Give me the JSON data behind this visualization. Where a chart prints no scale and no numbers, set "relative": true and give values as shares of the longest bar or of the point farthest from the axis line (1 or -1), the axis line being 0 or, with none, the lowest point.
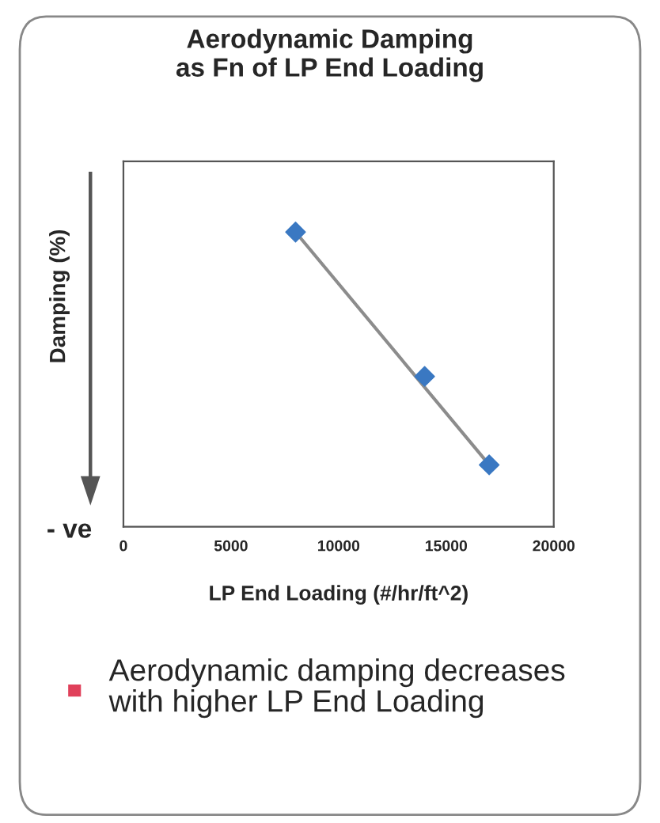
{
  "chart_data": {
    "type": "scatter",
    "title": "Aerodynamic Damping\nas Fn of LP End Loading",
    "xlabel": "LP End Loading (#/hr/ft^2)",
    "ylabel": "Damping (%)",
    "relative": true,
    "x": [
      8000,
      14000,
      17000
    ],
    "xlim": [
      0,
      20000
    ],
    "xticks": [
      0,
      5000,
      10000,
      15000,
      20000
    ],
    "grid": false,
    "series": [
      {
        "color": "#3a78c2",
        "marker": "diamond",
        "values": [
          1,
          0.51,
          0.21
        ]
      },
      {
        "type": "line",
        "color": "#8c8c8c",
        "x": [
          8000,
          17000
        ],
        "values": [
          1,
          0.21
        ]
      }
    ],
    "annotations": [
      "- ve",
      "Aerodynamic damping decreases with higher LP End Loading"
    ]
  }
}
